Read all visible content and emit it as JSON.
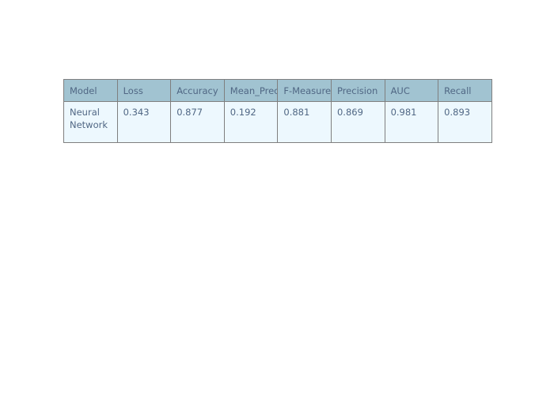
{
  "chart_data": {
    "type": "table",
    "header_fill": "#a1c3d1",
    "cell_fill": "#edf8fe",
    "font_color": "#506784",
    "line_color": "#7f7f7f",
    "columns": [
      "Model",
      "Loss",
      "Accuracy",
      "Mean_Precision",
      "F-Measure",
      "Precision",
      "AUC",
      "Recall"
    ],
    "rows": [
      [
        "Neural Network",
        "0.343",
        "0.877",
        "0.192",
        "0.881",
        "0.869",
        "0.981",
        "0.893"
      ]
    ]
  }
}
